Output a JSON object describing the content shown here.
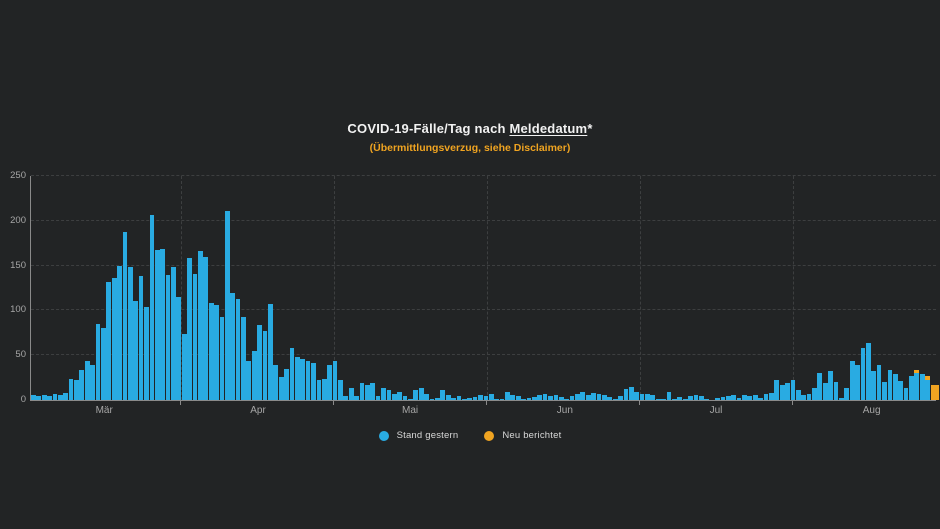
{
  "page": {
    "background_color": "#222425",
    "accent_blue": "#29abe2",
    "accent_orange": "#f0a421"
  },
  "header": {
    "title_prefix": "COVID-19-Fälle/Tag nach ",
    "title_underlined": "Meldedatum",
    "title_suffix": "*",
    "subtitle": "(Übermittlungsverzug, siehe Disclaimer)",
    "subtitle_color": "#f0a421"
  },
  "legend": {
    "items": [
      {
        "label": "Stand gestern",
        "color": "#29abe2"
      },
      {
        "label": "Neu berichtet",
        "color": "#f0a421"
      }
    ]
  },
  "chart_data": {
    "type": "bar",
    "title": "COVID-19-Fälle/Tag nach Meldedatum*",
    "subtitle": "(Übermittlungsverzug, siehe Disclaimer)",
    "xlabel": "",
    "ylabel": "",
    "ylim": [
      0,
      250
    ],
    "yticks": [
      0,
      50,
      100,
      150,
      200,
      250
    ],
    "grid": "dashed",
    "legend_position": "bottom-center",
    "x_month_labels": [
      {
        "label": "Mär",
        "center_pct": 8.2
      },
      {
        "label": "Apr",
        "center_pct": 25.2
      },
      {
        "label": "Mai",
        "center_pct": 42.0
      },
      {
        "label": "Jun",
        "center_pct": 59.1
      },
      {
        "label": "Jul",
        "center_pct": 75.8
      },
      {
        "label": "Aug",
        "center_pct": 93.0
      }
    ],
    "month_boundary_tick_pcts": [
      16.6,
      33.5,
      50.4,
      67.3,
      84.2
    ],
    "series": [
      {
        "name": "Stand gestern",
        "color": "#29abe2",
        "values": [
          6,
          4,
          6,
          5,
          7,
          6,
          8,
          24,
          22,
          33,
          43,
          39,
          85,
          80,
          132,
          136,
          150,
          187,
          149,
          110,
          138,
          104,
          207,
          167,
          169,
          139,
          149,
          115,
          74,
          158,
          141,
          166,
          160,
          108,
          106,
          93,
          211,
          119,
          113,
          93,
          43,
          55,
          84,
          77,
          107,
          39,
          26,
          35,
          58,
          48,
          46,
          43,
          41,
          22,
          24,
          39,
          43,
          22,
          4,
          13,
          4,
          19,
          17,
          19,
          4,
          13,
          11,
          7,
          9,
          4,
          1,
          11,
          13,
          7,
          1,
          2,
          11,
          6,
          2,
          4,
          1,
          2,
          3,
          6,
          4,
          7,
          1,
          1,
          9,
          6,
          4,
          1,
          2,
          3,
          6,
          7,
          4,
          6,
          3,
          1,
          4,
          7,
          9,
          6,
          8,
          7,
          6,
          3,
          1,
          4,
          12,
          14,
          9,
          7,
          7,
          6,
          1,
          1,
          9,
          1,
          3,
          1,
          5,
          6,
          4,
          1,
          0,
          2,
          3,
          4,
          6,
          2,
          6,
          4,
          6,
          2,
          7,
          8,
          22,
          17,
          19,
          22,
          11,
          6,
          7,
          13,
          30,
          19,
          32,
          20,
          2,
          13,
          43,
          39,
          58,
          64,
          32,
          39,
          20,
          33,
          29,
          21,
          13,
          27,
          30,
          29,
          22,
          0
        ]
      },
      {
        "name": "Neu berichtet",
        "color": "#f0a421",
        "sparse_values": [
          {
            "index": 164,
            "value": 3
          },
          {
            "index": 166,
            "value": 5
          },
          {
            "index": 167,
            "value": 17
          }
        ],
        "last_bar_width_factor": 1.7
      }
    ]
  }
}
